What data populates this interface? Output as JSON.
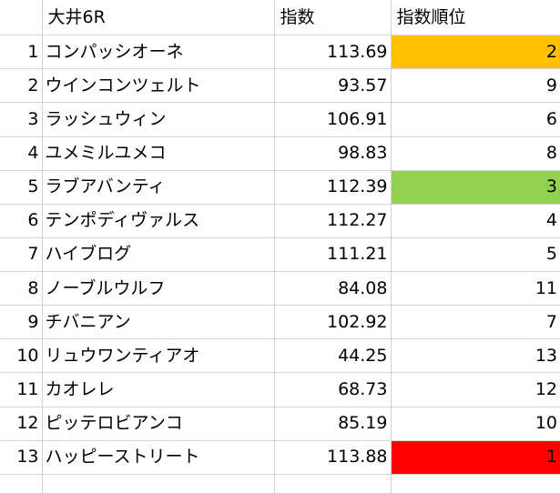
{
  "header": {
    "title": "大井6R",
    "col_index": "指数",
    "col_rank": "指数順位"
  },
  "highlight_colors": {
    "rank_1": "#ff0000",
    "rank_2": "#ffc000",
    "rank_3": "#92d050"
  },
  "rows": [
    {
      "no": "1",
      "name": "コンパッシオーネ",
      "index": "113.69",
      "rank": "2",
      "fill": "#ffc000"
    },
    {
      "no": "2",
      "name": "ウインコンツェルト",
      "index": "93.57",
      "rank": "9",
      "fill": ""
    },
    {
      "no": "3",
      "name": "ラッシュウィン",
      "index": "106.91",
      "rank": "6",
      "fill": ""
    },
    {
      "no": "4",
      "name": "ユメミルユメコ",
      "index": "98.83",
      "rank": "8",
      "fill": ""
    },
    {
      "no": "5",
      "name": "ラブアバンティ",
      "index": "112.39",
      "rank": "3",
      "fill": "#92d050"
    },
    {
      "no": "6",
      "name": "テンポディヴァルス",
      "index": "112.27",
      "rank": "4",
      "fill": ""
    },
    {
      "no": "7",
      "name": "ハイブログ",
      "index": "111.21",
      "rank": "5",
      "fill": ""
    },
    {
      "no": "8",
      "name": "ノーブルウルフ",
      "index": "84.08",
      "rank": "11",
      "fill": ""
    },
    {
      "no": "9",
      "name": "チバニアン",
      "index": "102.92",
      "rank": "7",
      "fill": ""
    },
    {
      "no": "10",
      "name": "リュウワンティアオ",
      "index": "44.25",
      "rank": "13",
      "fill": ""
    },
    {
      "no": "11",
      "name": "カオレレ",
      "index": "68.73",
      "rank": "12",
      "fill": ""
    },
    {
      "no": "12",
      "name": "ピッテロビアンコ",
      "index": "85.19",
      "rank": "10",
      "fill": ""
    },
    {
      "no": "13",
      "name": "ハッピーストリート",
      "index": "113.88",
      "rank": "1",
      "fill": "#ff0000"
    }
  ]
}
